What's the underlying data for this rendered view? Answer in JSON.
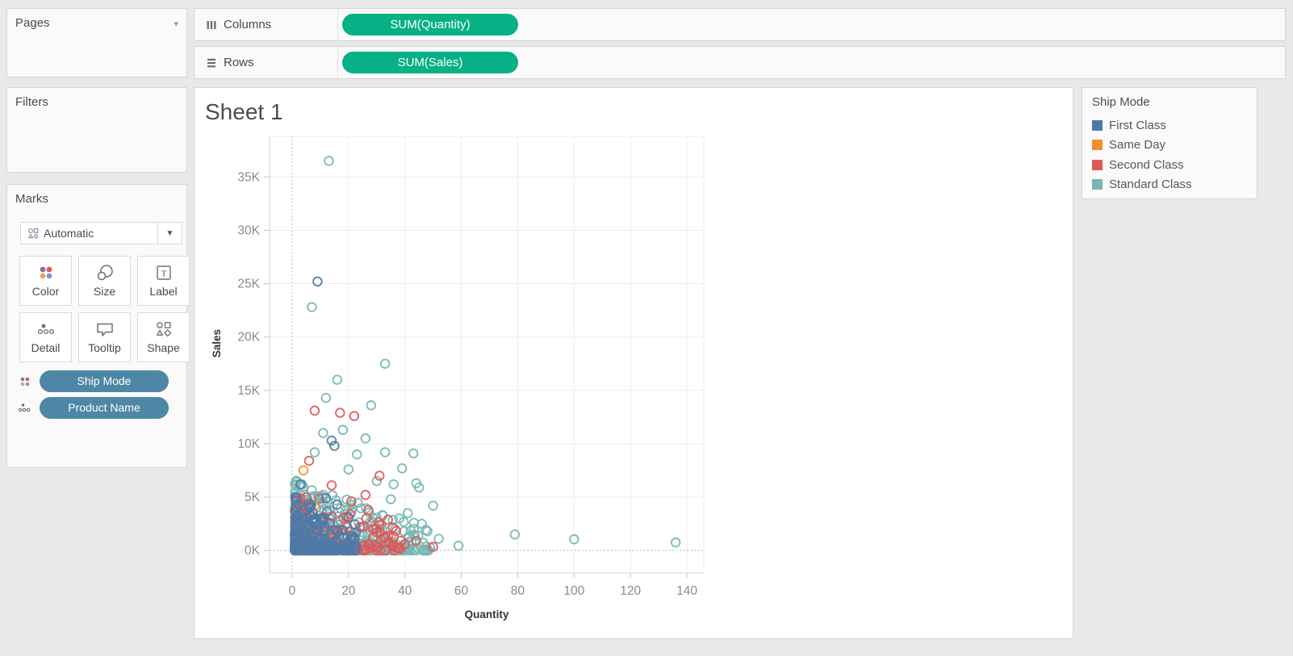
{
  "colors": {
    "measure_pill": "#08b185",
    "dimension_pill": "#4e87a5",
    "grid": "#ededed",
    "zero_line": "#b4b4b4",
    "axis_rule": "#d9d9d9",
    "tick": "#c0c0c0",
    "tick_label": "#8b8b8b",
    "axis_title": "#333333"
  },
  "pages": {
    "title": "Pages"
  },
  "filters": {
    "title": "Filters"
  },
  "marks": {
    "title": "Marks",
    "mark_type": "Automatic",
    "buttons": [
      {
        "id": "color",
        "label": "Color"
      },
      {
        "id": "size",
        "label": "Size"
      },
      {
        "id": "label",
        "label": "Label"
      },
      {
        "id": "detail",
        "label": "Detail"
      },
      {
        "id": "tooltip",
        "label": "Tooltip"
      },
      {
        "id": "shape",
        "label": "Shape"
      }
    ],
    "pills": [
      {
        "label": "Ship Mode",
        "icon": "color"
      },
      {
        "label": "Product Name",
        "icon": "detail"
      }
    ]
  },
  "shelves": {
    "columns": {
      "label": "Columns",
      "pill": "SUM(Quantity)"
    },
    "rows": {
      "label": "Rows",
      "pill": "SUM(Sales)"
    }
  },
  "sheet": {
    "title": "Sheet 1"
  },
  "legend": {
    "title": "Ship Mode",
    "items": [
      {
        "label": "First Class",
        "color": "#4e79a7"
      },
      {
        "label": "Same Day",
        "color": "#f28e2b"
      },
      {
        "label": "Second Class",
        "color": "#e15759"
      },
      {
        "label": "Standard Class",
        "color": "#76b7b2"
      }
    ]
  },
  "chart_data": {
    "type": "scatter",
    "title": "Sheet 1",
    "xlabel": "Quantity",
    "ylabel": "Sales",
    "x_ticks": [
      0,
      20,
      40,
      60,
      80,
      100,
      120,
      140
    ],
    "y_ticks": [
      0,
      5000,
      10000,
      15000,
      20000,
      25000,
      30000,
      35000
    ],
    "y_tick_labels": [
      "0K",
      "5K",
      "10K",
      "15K",
      "20K",
      "25K",
      "30K",
      "35K"
    ],
    "xlim": [
      -8,
      146
    ],
    "ylim": [
      -2100,
      38800
    ],
    "grid": true,
    "legend_position": "right",
    "marker": {
      "shape": "open-circle",
      "radius": 5.3,
      "stroke_width": 1.9
    },
    "series": [
      {
        "name": "First Class",
        "color": "#4e79a7"
      },
      {
        "name": "Same Day",
        "color": "#f28e2b"
      },
      {
        "name": "Second Class",
        "color": "#e15759"
      },
      {
        "name": "Standard Class",
        "color": "#76b7b2"
      }
    ],
    "draw_order": [
      "Standard Class",
      "Second Class",
      "Same Day",
      "First Class"
    ],
    "highlight_points": {
      "First Class": [
        [
          9,
          25200
        ],
        [
          14,
          10300
        ],
        [
          15,
          9800
        ],
        [
          3,
          6200
        ],
        [
          12,
          4900
        ],
        [
          6,
          4400
        ],
        [
          16,
          4300
        ],
        [
          20,
          3100
        ],
        [
          2,
          3300
        ],
        [
          11,
          2700
        ],
        [
          18,
          1900
        ],
        [
          22,
          1200
        ]
      ],
      "Same Day": [
        [
          4,
          7500
        ],
        [
          8,
          4200
        ],
        [
          3,
          3200
        ],
        [
          2,
          2400
        ],
        [
          6,
          1500
        ],
        [
          10,
          800
        ],
        [
          13,
          400
        ],
        [
          5,
          2000
        ]
      ],
      "Second Class": [
        [
          8,
          13100
        ],
        [
          17,
          12900
        ],
        [
          22,
          12600
        ],
        [
          6,
          8400
        ],
        [
          31,
          7000
        ],
        [
          14,
          6100
        ],
        [
          5,
          5000
        ],
        [
          21,
          4600
        ],
        [
          26,
          5200
        ],
        [
          27,
          3800
        ],
        [
          34,
          2900
        ],
        [
          36,
          1300
        ],
        [
          44,
          900
        ],
        [
          50,
          350
        ],
        [
          24,
          2200
        ],
        [
          30,
          1700
        ],
        [
          40,
          600
        ]
      ],
      "Standard Class": [
        [
          13,
          36500
        ],
        [
          7,
          22800
        ],
        [
          33,
          17500
        ],
        [
          16,
          16000
        ],
        [
          12,
          14300
        ],
        [
          28,
          13600
        ],
        [
          18,
          11300
        ],
        [
          11,
          11000
        ],
        [
          26,
          10500
        ],
        [
          8,
          9200
        ],
        [
          23,
          9000
        ],
        [
          33,
          9200
        ],
        [
          43,
          9100
        ],
        [
          20,
          7600
        ],
        [
          39,
          7700
        ],
        [
          30,
          6500
        ],
        [
          36,
          6200
        ],
        [
          44,
          6300
        ],
        [
          45,
          5900
        ],
        [
          50,
          4200
        ],
        [
          35,
          4800
        ],
        [
          41,
          3500
        ],
        [
          38,
          3000
        ],
        [
          46,
          2500
        ],
        [
          48,
          1800
        ],
        [
          52,
          1100
        ],
        [
          59,
          450
        ],
        [
          79,
          1500
        ],
        [
          100,
          1050
        ],
        [
          136,
          750
        ]
      ]
    },
    "clusters": [
      {
        "series": "Standard Class",
        "seed": 7,
        "count": 380,
        "q_min": 1,
        "q_spread": 48,
        "q_exp": 2.3,
        "s_max": 6800,
        "s_exp": 3.2,
        "q_fade": 70
      },
      {
        "series": "Standard Class",
        "seed": 8,
        "count": 180,
        "q_min": 1,
        "q_spread": 40,
        "q_exp": 2.0,
        "s_max": 800,
        "s_exp": 1.5,
        "q_fade": 200
      },
      {
        "series": "Second Class",
        "seed": 13,
        "count": 150,
        "q_min": 1,
        "q_spread": 38,
        "q_exp": 2.2,
        "s_max": 6000,
        "s_exp": 3.2,
        "q_fade": 60
      },
      {
        "series": "Second Class",
        "seed": 14,
        "count": 60,
        "q_min": 1,
        "q_spread": 30,
        "q_exp": 2.0,
        "s_max": 700,
        "s_exp": 1.5,
        "q_fade": 200
      },
      {
        "series": "Same Day",
        "seed": 21,
        "count": 22,
        "q_min": 1,
        "q_spread": 16,
        "q_exp": 2.0,
        "s_max": 3000,
        "s_exp": 2.8,
        "q_fade": 40
      },
      {
        "series": "First Class",
        "seed": 42,
        "count": 260,
        "q_min": 1,
        "q_spread": 22,
        "q_exp": 2.4,
        "s_max": 5200,
        "s_exp": 3.6,
        "q_fade": 45
      },
      {
        "series": "First Class",
        "seed": 43,
        "count": 200,
        "q_min": 1,
        "q_spread": 14,
        "q_exp": 1.6,
        "s_max": 700,
        "s_exp": 1.5,
        "q_fade": 200
      }
    ]
  }
}
